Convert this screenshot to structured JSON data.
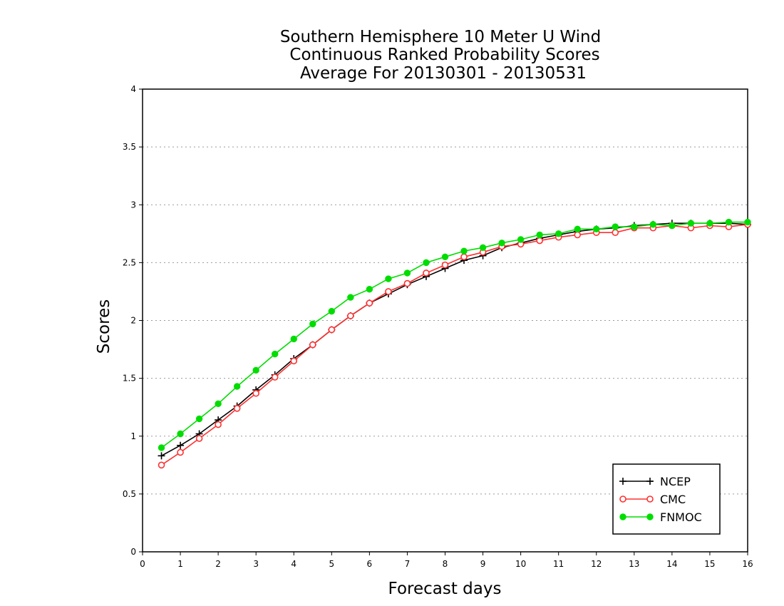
{
  "chart_data": {
    "type": "line",
    "title": [
      "Southern Hemisphere 10 Meter U Wind",
      "Continuous Ranked Probability Scores",
      "Average For 20130301 - 20130531"
    ],
    "xlabel": "Forecast days",
    "ylabel": "Scores",
    "xlim": [
      0,
      16
    ],
    "ylim": [
      0,
      4
    ],
    "xticks": [
      "0",
      "1",
      "2",
      "3",
      "4",
      "5",
      "6",
      "7",
      "8",
      "9",
      "10",
      "11",
      "12",
      "13",
      "14",
      "15",
      "16"
    ],
    "yticks": [
      "0",
      "0.5",
      "1",
      "1.5",
      "2",
      "2.5",
      "3",
      "3.5",
      "4"
    ],
    "grid": "horizontal dotted",
    "legend_position": "bottom-right",
    "x": [
      0.5,
      1,
      1.5,
      2,
      2.5,
      3,
      3.5,
      4,
      4.5,
      5,
      5.5,
      6,
      6.5,
      7,
      7.5,
      8,
      8.5,
      9,
      9.5,
      10,
      10.5,
      11,
      11.5,
      12,
      12.5,
      13,
      13.5,
      14,
      14.5,
      15,
      15.5,
      16
    ],
    "series": [
      {
        "name": "NCEP",
        "color": "#000000",
        "marker": "plus",
        "values": [
          0.83,
          0.92,
          1.02,
          1.14,
          1.26,
          1.4,
          1.53,
          1.67,
          1.79,
          1.92,
          2.04,
          2.15,
          2.23,
          2.31,
          2.38,
          2.45,
          2.52,
          2.56,
          2.63,
          2.67,
          2.71,
          2.74,
          2.77,
          2.79,
          2.8,
          2.82,
          2.83,
          2.84,
          2.84,
          2.84,
          2.84,
          2.83
        ]
      },
      {
        "name": "CMC",
        "color": "#ff3030",
        "marker": "open-circle",
        "values": [
          0.75,
          0.86,
          0.98,
          1.1,
          1.24,
          1.37,
          1.51,
          1.65,
          1.79,
          1.92,
          2.04,
          2.15,
          2.25,
          2.32,
          2.41,
          2.48,
          2.55,
          2.59,
          2.64,
          2.66,
          2.69,
          2.72,
          2.74,
          2.76,
          2.76,
          2.8,
          2.8,
          2.82,
          2.8,
          2.82,
          2.81,
          2.83
        ]
      },
      {
        "name": "FNMOC",
        "color": "#00dd00",
        "marker": "filled-circle",
        "values": [
          0.9,
          1.02,
          1.15,
          1.28,
          1.43,
          1.57,
          1.71,
          1.84,
          1.97,
          2.08,
          2.2,
          2.27,
          2.36,
          2.41,
          2.5,
          2.55,
          2.6,
          2.63,
          2.67,
          2.7,
          2.74,
          2.75,
          2.79,
          2.79,
          2.81,
          2.81,
          2.83,
          2.82,
          2.84,
          2.84,
          2.85,
          2.85
        ]
      }
    ]
  }
}
